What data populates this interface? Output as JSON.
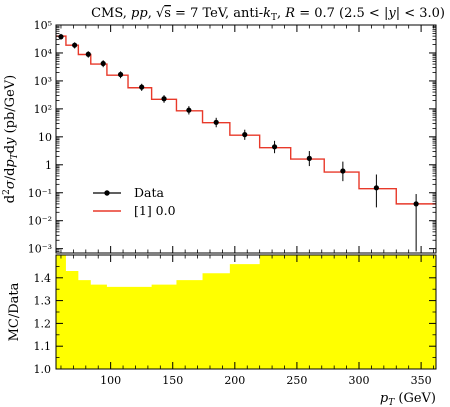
{
  "chart_data": [
    {
      "type": "scatter",
      "title": "CMS, pp, √s = 7 TeV, anti-kT, R = 0.7 (2.5 < |y| < 3.0)",
      "ylabel": "d²σ/dpTdy (pb/GeV)",
      "xlim": [
        56,
        362
      ],
      "ylim": [
        0.0007,
        100000
      ],
      "yscale": "log",
      "yticks": [
        {
          "v": 0.001,
          "label": "10⁻³"
        },
        {
          "v": 0.01,
          "label": "10⁻²"
        },
        {
          "v": 0.1,
          "label": "10⁻¹"
        },
        {
          "v": 1,
          "label": "1"
        },
        {
          "v": 10,
          "label": "10"
        },
        {
          "v": 100,
          "label": "10²"
        },
        {
          "v": 1000,
          "label": "10³"
        },
        {
          "v": 10000,
          "label": "10⁴"
        },
        {
          "v": 100000,
          "label": "10⁵"
        }
      ],
      "legend_position": "bottom-left",
      "series": [
        {
          "name": "Data",
          "kind": "points-with-errors",
          "color": "#000000",
          "x": [
            60,
            71,
            82,
            94,
            108,
            125,
            143,
            163,
            185,
            208,
            232,
            260,
            287,
            314,
            346
          ],
          "y": [
            38000,
            19000,
            9000,
            4200,
            1700,
            600,
            230,
            90,
            33,
            12,
            4.4,
            1.7,
            0.6,
            0.15,
            0.04
          ],
          "y_low": [
            30000,
            14500,
            6800,
            3100,
            1250,
            440,
            165,
            63,
            22,
            7.8,
            2.6,
            0.9,
            0.26,
            0.03,
            0.0008
          ],
          "y_high": [
            48000,
            24000,
            11500,
            5500,
            2200,
            790,
            310,
            125,
            48,
            18,
            7.2,
            3.1,
            1.3,
            0.45,
            0.09
          ]
        },
        {
          "name": "[1] 0.0",
          "kind": "step",
          "color": "#e8392a",
          "edges": [
            56,
            64,
            74,
            84,
            97,
            114,
            133,
            153,
            174,
            196,
            220,
            245,
            272,
            300,
            330,
            362
          ],
          "values": [
            40000,
            19000,
            8800,
            4000,
            1600,
            570,
            220,
            85,
            32,
            11.5,
            4.1,
            1.6,
            0.55,
            0.14,
            0.04
          ]
        }
      ]
    },
    {
      "type": "area",
      "ylabel": "MC/Data",
      "xlabel": "pT (GeV)",
      "xlim": [
        56,
        362
      ],
      "ylim": [
        1.0,
        1.5
      ],
      "xticks": [
        100,
        150,
        200,
        250,
        300,
        350
      ],
      "yticks": [
        1.0,
        1.1,
        1.2,
        1.3,
        1.4
      ],
      "series": [
        {
          "kind": "band-step",
          "color": "#ffff00",
          "edges": [
            56,
            64,
            74,
            84,
            97,
            114,
            133,
            153,
            174,
            196,
            220,
            245,
            272,
            300,
            330,
            362
          ],
          "upper": [
            1.5,
            1.43,
            1.39,
            1.37,
            1.36,
            1.36,
            1.37,
            1.39,
            1.42,
            1.46,
            1.5,
            1.5,
            1.5,
            1.5,
            1.5
          ],
          "lower": [
            1.0,
            1.0,
            1.0,
            1.0,
            1.0,
            1.0,
            1.0,
            1.0,
            1.0,
            1.0,
            1.0,
            1.0,
            1.0,
            1.0,
            1.0
          ]
        }
      ]
    }
  ]
}
